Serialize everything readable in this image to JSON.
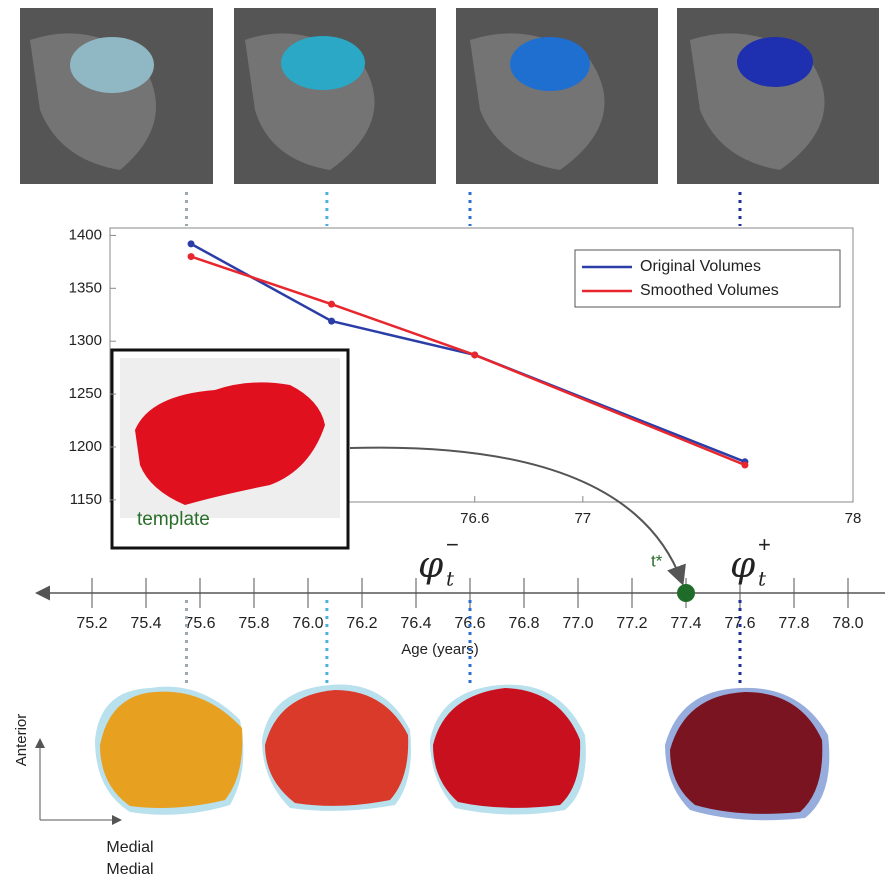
{
  "chart_data": {
    "type": "line",
    "x": [
      75.55,
      76.07,
      76.6,
      77.6
    ],
    "series": [
      {
        "name": "Original Volumes",
        "color": "#2b3ea8",
        "values": [
          1392,
          1319,
          1287,
          1186
        ]
      },
      {
        "name": "Smoothed Volumes",
        "color": "#e8262e",
        "values": [
          1380,
          1335,
          1287,
          1183
        ]
      }
    ],
    "xlim": [
      75.25,
      78
    ],
    "xticks": [
      76.6,
      77,
      78
    ],
    "ylim": [
      1148,
      1407
    ],
    "yticks": [
      1150,
      1200,
      1250,
      1300,
      1350,
      1400
    ],
    "legend": "upper right",
    "grid": false
  },
  "inset": {
    "label": "template"
  },
  "age_axis": {
    "label": "Age (years)",
    "xlim": [
      74.97,
      78.3
    ],
    "xticks": [
      75.2,
      75.4,
      75.6,
      75.8,
      {
        "value": 76,
        "label": "76.0"
      },
      76.2,
      76.4,
      76.6,
      76.8,
      {
        "value": 77,
        "label": "77.0"
      },
      77.2,
      77.4,
      77.6,
      77.8,
      {
        "value": 78,
        "label": "78.0"
      }
    ],
    "t_star": {
      "label": "t*",
      "x": 77.4
    },
    "phi_minus": {
      "base": "φ",
      "sub": "t",
      "sup": "−"
    },
    "phi_plus": {
      "base": "φ",
      "sub": "t",
      "sup": "+"
    }
  },
  "orientation": {
    "vertical": "Anterior",
    "horizontal": "Medial",
    "caption": "Medial"
  }
}
